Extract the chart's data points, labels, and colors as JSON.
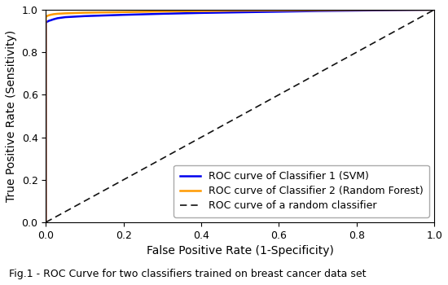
{
  "title": "Fig.1 - ROC Curve for two classifiers trained on breast cancer data set",
  "xlabel": "False Positive Rate (1-Specificity)",
  "ylabel": "True Positive Rate (Sensitivity)",
  "xlim": [
    0.0,
    1.0
  ],
  "ylim": [
    0.0,
    1.0
  ],
  "svm_color": "#0000ee",
  "rf_color": "#ff9900",
  "random_color": "#111111",
  "svm_label": "ROC curve of Classifier 1 (SVM)",
  "rf_label": "ROC curve of Classifier 2 (Random Forest)",
  "random_label": "ROC curve of a random classifier",
  "svm_fpr": [
    0.0,
    0.0,
    0.005,
    0.008,
    0.012,
    0.02,
    0.03,
    0.05,
    0.1,
    0.2,
    0.3,
    0.4,
    0.5,
    0.6,
    0.7,
    0.8,
    0.9,
    1.0
  ],
  "svm_tpr": [
    0.0,
    0.94,
    0.945,
    0.948,
    0.95,
    0.955,
    0.96,
    0.965,
    0.97,
    0.976,
    0.981,
    0.985,
    0.988,
    0.991,
    0.994,
    0.996,
    0.998,
    1.0
  ],
  "rf_fpr": [
    0.0,
    0.0,
    0.003,
    0.005,
    0.008,
    0.012,
    0.02,
    0.03,
    0.05,
    0.1,
    0.2,
    0.3,
    0.4,
    0.5,
    0.6,
    0.7,
    0.8,
    0.9,
    1.0
  ],
  "rf_tpr": [
    0.0,
    0.968,
    0.97,
    0.972,
    0.974,
    0.976,
    0.979,
    0.981,
    0.983,
    0.986,
    0.989,
    0.992,
    0.994,
    0.996,
    0.997,
    0.998,
    0.999,
    0.9995,
    1.0
  ],
  "legend_loc": "lower right",
  "background_color": "#ffffff",
  "svm_linewidth": 1.8,
  "rf_linewidth": 1.8,
  "random_linewidth": 1.2,
  "title_fontsize": 9,
  "axis_label_fontsize": 10,
  "tick_fontsize": 9,
  "legend_fontsize": 9
}
